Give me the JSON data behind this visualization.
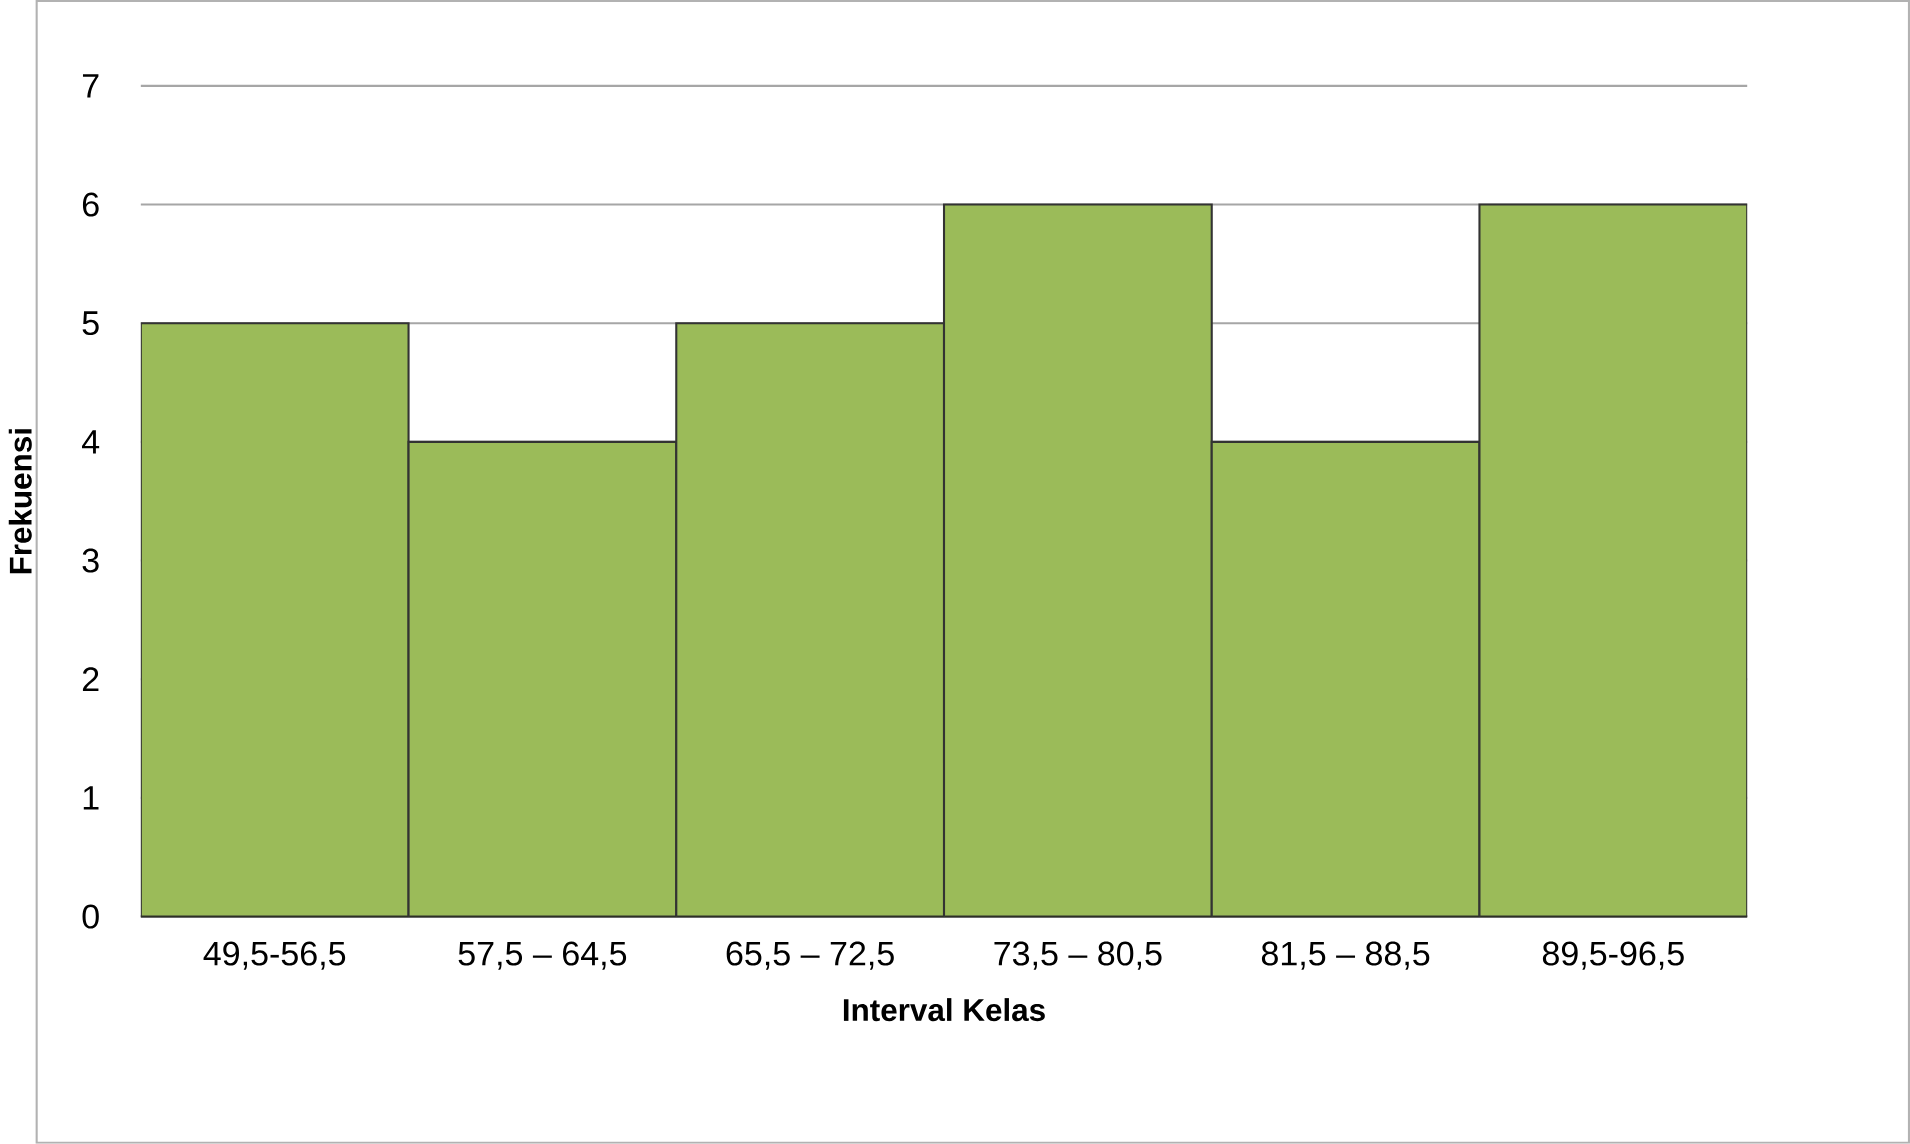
{
  "chart_data": {
    "type": "bar",
    "xlabel": "Interval Kelas",
    "ylabel": "Frekuensi",
    "categories": [
      "49,5-56,5",
      "57,5 – 64,5",
      "65,5 – 72,5",
      "73,5 – 80,5",
      "81,5 – 88,5",
      "89,5-96,5"
    ],
    "values": [
      5,
      4,
      5,
      6,
      4,
      6
    ],
    "color": "#9bbb59",
    "ylim": [
      0,
      7
    ],
    "yticks": [
      0,
      1,
      2,
      3,
      4,
      5,
      6,
      7
    ],
    "grid": "y"
  }
}
